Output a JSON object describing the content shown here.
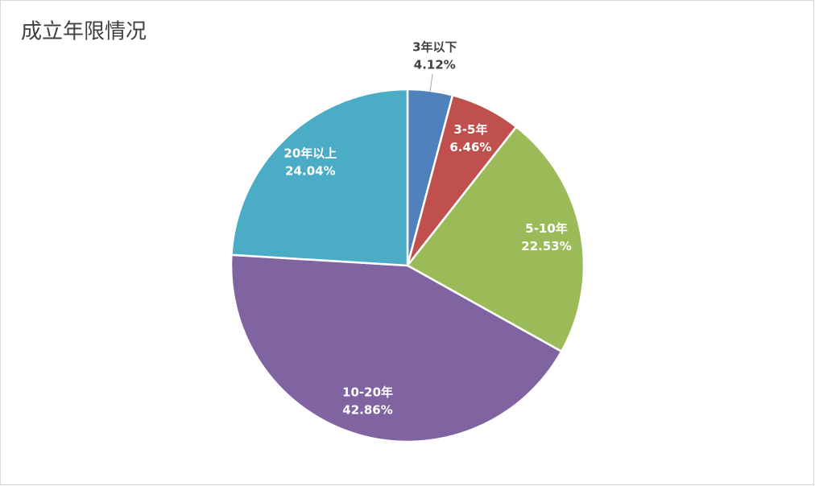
{
  "chart_data": {
    "type": "pie",
    "title": "成立年限情况",
    "categories": [
      "3年以下",
      "3-5年",
      "5-10年",
      "10-20年",
      "20年以上"
    ],
    "values": [
      4.12,
      6.46,
      22.53,
      42.86,
      24.04
    ],
    "value_labels": [
      "4.12%",
      "6.46%",
      "22.53%",
      "42.86%",
      "24.04%"
    ],
    "colors": [
      "#4f81bd",
      "#c0504d",
      "#9bbb59",
      "#8064a2",
      "#4bacc6"
    ]
  }
}
